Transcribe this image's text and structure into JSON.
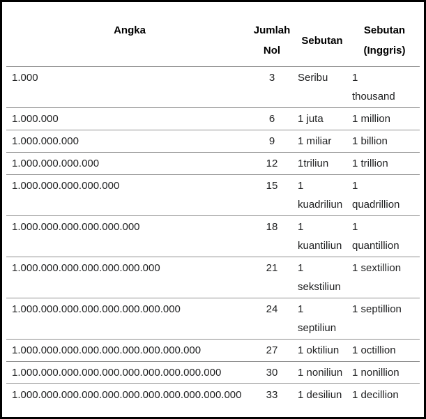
{
  "table": {
    "headers": [
      "Angka",
      "Jumlah\nNol",
      "Sebutan",
      "Sebutan\n(Inggris)"
    ],
    "rows": [
      {
        "angka": "1.000",
        "jumlah_nol": "3",
        "sebutan": "Seribu",
        "sebutan_inggris": "1\nthousand"
      },
      {
        "angka": "1.000.000",
        "jumlah_nol": "6",
        "sebutan": "1 juta",
        "sebutan_inggris": "1 million"
      },
      {
        "angka": "1.000.000.000",
        "jumlah_nol": "9",
        "sebutan": "1 miliar",
        "sebutan_inggris": "1 billion"
      },
      {
        "angka": "1.000.000.000.000",
        "jumlah_nol": "12",
        "sebutan": "1triliun",
        "sebutan_inggris": "1 trillion"
      },
      {
        "angka": "1.000.000.000.000.000",
        "jumlah_nol": "15",
        "sebutan": "1\nkuadriliun",
        "sebutan_inggris": "1\nquadrillion"
      },
      {
        "angka": "1.000.000.000.000.000.000",
        "jumlah_nol": "18",
        "sebutan": "1\nkuantiliun",
        "sebutan_inggris": "1\nquantillion"
      },
      {
        "angka": "1.000.000.000.000.000.000.000",
        "jumlah_nol": "21",
        "sebutan": "1\nsekstiliun",
        "sebutan_inggris": "1 sextillion"
      },
      {
        "angka": "1.000.000.000.000.000.000.000.000",
        "jumlah_nol": "24",
        "sebutan": "1\nseptiliun",
        "sebutan_inggris": "1 septillion"
      },
      {
        "angka": "1.000.000.000.000.000.000.000.000.000",
        "jumlah_nol": "27",
        "sebutan": "1 oktiliun",
        "sebutan_inggris": "1 octillion"
      },
      {
        "angka": "1.000.000.000.000.000.000.000.000.000.000",
        "jumlah_nol": "30",
        "sebutan": "1 noniliun",
        "sebutan_inggris": "1 nonillion"
      },
      {
        "angka": "1.000.000.000.000.000.000.000.000.000.000.000",
        "jumlah_nol": "33",
        "sebutan": "1 desiliun",
        "sebutan_inggris": "1 decillion"
      }
    ]
  },
  "chart_data": {
    "type": "table",
    "columns": [
      "Angka",
      "Jumlah Nol",
      "Sebutan",
      "Sebutan (Inggris)"
    ],
    "rows": [
      [
        "1.000",
        3,
        "Seribu",
        "1 thousand"
      ],
      [
        "1.000.000",
        6,
        "1 juta",
        "1 million"
      ],
      [
        "1.000.000.000",
        9,
        "1 miliar",
        "1 billion"
      ],
      [
        "1.000.000.000.000",
        12,
        "1triliun",
        "1 trillion"
      ],
      [
        "1.000.000.000.000.000",
        15,
        "1 kuadriliun",
        "1 quadrillion"
      ],
      [
        "1.000.000.000.000.000.000",
        18,
        "1 kuantiliun",
        "1 quantillion"
      ],
      [
        "1.000.000.000.000.000.000.000",
        21,
        "1 sekstiliun",
        "1 sextillion"
      ],
      [
        "1.000.000.000.000.000.000.000.000",
        24,
        "1 septiliun",
        "1 septillion"
      ],
      [
        "1.000.000.000.000.000.000.000.000.000",
        27,
        "1 oktiliun",
        "1 octillion"
      ],
      [
        "1.000.000.000.000.000.000.000.000.000.000",
        30,
        "1 noniliun",
        "1 nonillion"
      ],
      [
        "1.000.000.000.000.000.000.000.000.000.000.000",
        33,
        "1 desiliun",
        "1 decillion"
      ]
    ]
  },
  "colors": {
    "frame_border": "#000000",
    "row_separator": "#8f8f8f",
    "text": "#202122",
    "background": "#ffffff"
  }
}
